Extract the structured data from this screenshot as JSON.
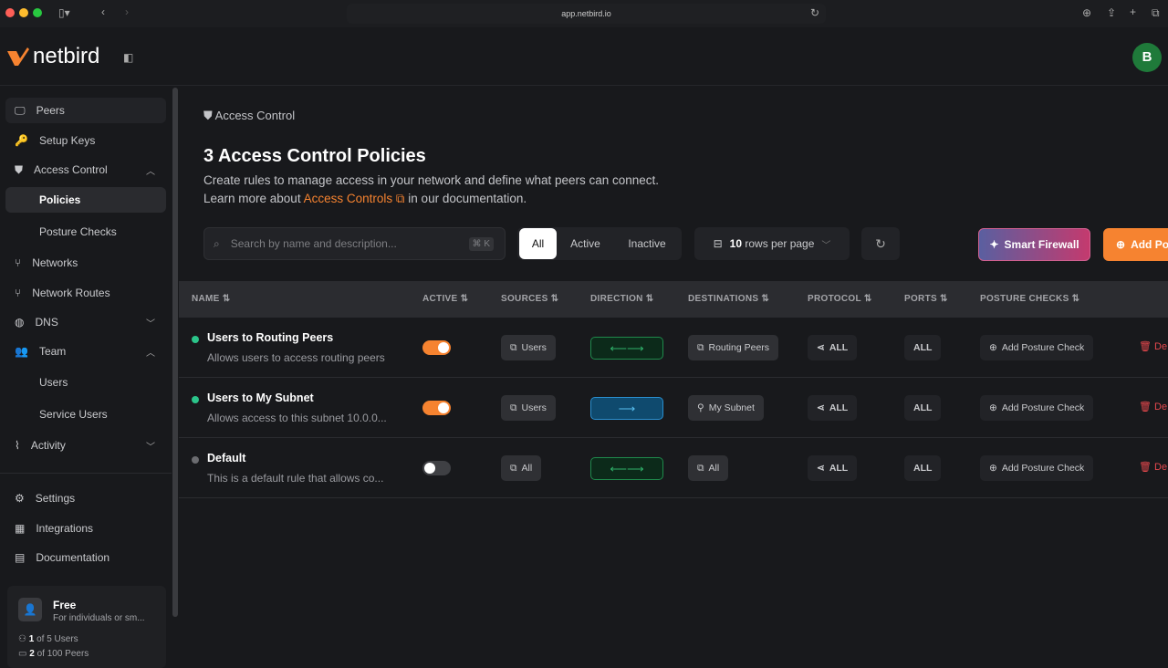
{
  "browser": {
    "url": "app.netbird.io"
  },
  "brand": {
    "name": "netbird",
    "accent": "#f68330"
  },
  "user": {
    "initial": "B"
  },
  "sidebar": {
    "items": [
      {
        "label": "Peers",
        "icon": "monitor-icon"
      },
      {
        "label": "Setup Keys",
        "icon": "key-icon"
      },
      {
        "label": "Access Control",
        "icon": "shield-icon",
        "expanded": true
      },
      {
        "label": "Policies",
        "selected": true
      },
      {
        "label": "Posture Checks"
      },
      {
        "label": "Networks",
        "icon": "network-icon"
      },
      {
        "label": "Network Routes",
        "icon": "route-icon"
      },
      {
        "label": "DNS",
        "icon": "globe-icon"
      },
      {
        "label": "Team",
        "icon": "users-icon",
        "expanded": true
      },
      {
        "label": "Users"
      },
      {
        "label": "Service Users"
      },
      {
        "label": "Activity",
        "icon": "activity-icon"
      },
      {
        "label": "Settings",
        "icon": "gear-icon"
      },
      {
        "label": "Integrations",
        "icon": "grid-icon"
      },
      {
        "label": "Documentation",
        "icon": "book-icon"
      }
    ],
    "plan": {
      "name": "Free",
      "desc": "For individuals or sm...",
      "users_count": "1",
      "users_text": "of 5 Users",
      "peers_count": "2",
      "peers_text": "of 100 Peers"
    }
  },
  "page": {
    "breadcrumb": "Access Control",
    "title": "3 Access Control Policies",
    "desc1": "Create rules to manage access in your network and define what peers can connect.",
    "desc2_pre": "Learn more about",
    "desc2_link": "Access Controls",
    "desc2_post": "in our documentation."
  },
  "toolbar": {
    "search_placeholder": "Search by name and description...",
    "shortcut": "⌘ K",
    "filters": [
      "All",
      "Active",
      "Inactive"
    ],
    "active_filter": "All",
    "rows_count": "10",
    "rows_label": "rows per page",
    "smart_firewall": "Smart Firewall",
    "add_policy": "Add Po"
  },
  "table": {
    "headers": [
      "NAME",
      "ACTIVE",
      "SOURCES",
      "DIRECTION",
      "DESTINATIONS",
      "PROTOCOL",
      "PORTS",
      "POSTURE CHECKS"
    ],
    "rows": [
      {
        "name": "Users to Routing Peers",
        "desc": "Allows users to access routing peers",
        "enabled": true,
        "source": "Users",
        "direction": "bidirectional",
        "destination": "Routing Peers",
        "protocol": "ALL",
        "ports": "ALL",
        "posture": "Add Posture Check",
        "delete": "De"
      },
      {
        "name": "Users to My Subnet",
        "desc": "Allows access to this subnet 10.0.0...",
        "enabled": true,
        "source": "Users",
        "direction": "one-way",
        "destination": "My Subnet",
        "protocol": "ALL",
        "ports": "ALL",
        "posture": "Add Posture Check",
        "delete": "De"
      },
      {
        "name": "Default",
        "desc": "This is a default rule that allows co...",
        "enabled": false,
        "source": "All",
        "direction": "bidirectional",
        "destination": "All",
        "protocol": "ALL",
        "ports": "ALL",
        "posture": "Add Posture Check",
        "delete": "De"
      }
    ]
  }
}
